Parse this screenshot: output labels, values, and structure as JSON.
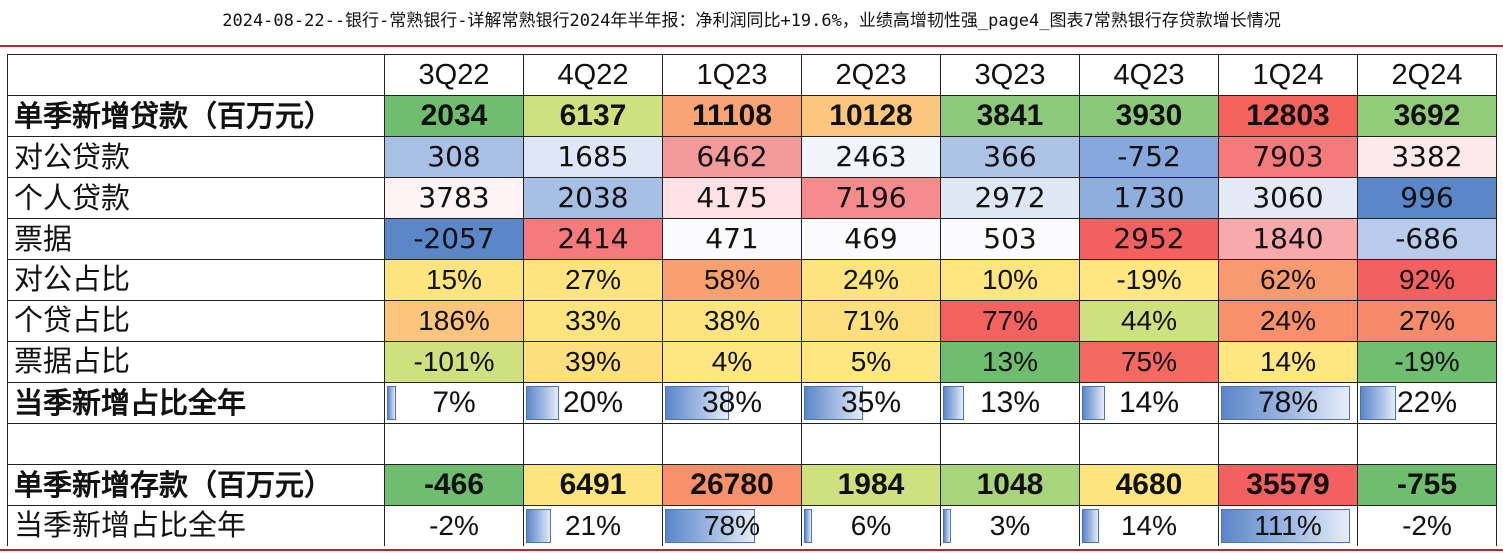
{
  "caption": "2024-08-22--银行-常熟银行-详解常熟银行2024年半年报：净利润同比+19.6%，业绩高增韧性强_page4_图表7常熟银行存贷款增长情况",
  "header": [
    "",
    "3Q22",
    "4Q22",
    "1Q23",
    "2Q23",
    "3Q23",
    "4Q23",
    "1Q24",
    "2Q24"
  ],
  "rows": [
    {
      "label": "单季新增贷款（百万元）",
      "bold": true,
      "values": [
        "2034",
        "6137",
        "11108",
        "10128",
        "3841",
        "3930",
        "12803",
        "3692"
      ],
      "colors": [
        "#6fbe6f",
        "#cfe07f",
        "#f8a474",
        "#fcc67e",
        "#8cc97a",
        "#8ac979",
        "#f4625e",
        "#92cc79"
      ]
    },
    {
      "label": "对公贷款",
      "bold": false,
      "values": [
        "308",
        "1685",
        "6462",
        "2463",
        "366",
        "-752",
        "7903",
        "3382"
      ],
      "colors": [
        "#a9c0e6",
        "#dfe6f5",
        "#f39b9b",
        "#f2f4fb",
        "#adc4e7",
        "#87a8dc",
        "#f47a7c",
        "#fde8ea"
      ]
    },
    {
      "label": "个人贷款",
      "bold": false,
      "values": [
        "3783",
        "2038",
        "4175",
        "7196",
        "2972",
        "1730",
        "3060",
        "996"
      ],
      "colors": [
        "#fdf3f4",
        "#a6bfe5",
        "#fde1e3",
        "#f58b8c",
        "#dfe7f5",
        "#8eaedf",
        "#e3eaf6",
        "#5b86c8"
      ]
    },
    {
      "label": "票据",
      "bold": false,
      "values": [
        "-2057",
        "2414",
        "471",
        "469",
        "503",
        "2952",
        "1840",
        "-686"
      ],
      "colors": [
        "#5b86c8",
        "#f47a7c",
        "#fbfbfd",
        "#fbfbfd",
        "#fbfbfd",
        "#f26060",
        "#f7a9ab",
        "#b8cbea"
      ]
    },
    {
      "label": "对公占比",
      "bold": false,
      "values": [
        "15%",
        "27%",
        "58%",
        "24%",
        "10%",
        "-19%",
        "62%",
        "92%"
      ],
      "colors": [
        "#fde47e",
        "#fde47e",
        "#f8a070",
        "#fde47e",
        "#fee57f",
        "#fee681",
        "#f89a6f",
        "#f26060"
      ]
    },
    {
      "label": "个贷占比",
      "bold": false,
      "values": [
        "186%",
        "33%",
        "38%",
        "71%",
        "77%",
        "44%",
        "24%",
        "27%"
      ],
      "colors": [
        "#fcc47c",
        "#fde47e",
        "#fde47e",
        "#fde07d",
        "#f46260",
        "#cfe07f",
        "#f8906c",
        "#f68a6a"
      ]
    },
    {
      "label": "票据占比",
      "bold": false,
      "values": [
        "-101%",
        "39%",
        "4%",
        "5%",
        "13%",
        "75%",
        "14%",
        "-19%"
      ],
      "colors": [
        "#cfe07f",
        "#fde07d",
        "#fee681",
        "#fee681",
        "#6fbe6f",
        "#f46a62",
        "#fee681",
        "#70be70"
      ]
    }
  ],
  "loan_share_row": {
    "label": "当季新增占比全年",
    "bold": true,
    "values": [
      "7%",
      "20%",
      "38%",
      "35%",
      "13%",
      "14%",
      "78%",
      "22%"
    ],
    "fill": [
      0.07,
      0.25,
      0.48,
      0.44,
      0.16,
      0.17,
      0.97,
      0.27
    ]
  },
  "deposit_row": {
    "label": "单季新增存款（百万元）",
    "bold": true,
    "values": [
      "-466",
      "6491",
      "26780",
      "1984",
      "1048",
      "4680",
      "35579",
      "-755"
    ],
    "colors": [
      "#6fbe6f",
      "#fde47e",
      "#f8906c",
      "#cfe07f",
      "#a8d57c",
      "#fde47e",
      "#f26060",
      "#6fbe6f"
    ]
  },
  "deposit_share_row": {
    "label": "当季新增占比全年",
    "bold": false,
    "values": [
      "-2%",
      "21%",
      "78%",
      "6%",
      "3%",
      "14%",
      "111%",
      "-2%"
    ],
    "fill": [
      0.0,
      0.19,
      0.68,
      0.05,
      0.03,
      0.13,
      0.97,
      0.0
    ]
  }
}
